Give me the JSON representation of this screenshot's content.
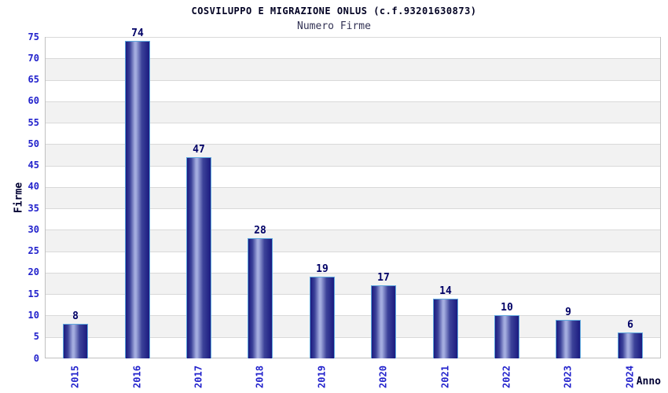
{
  "chart_data": {
    "type": "bar",
    "title": "COSVILUPPO E MIGRAZIONE ONLUS (c.f.93201630873)",
    "subtitle": "Numero Firme",
    "xlabel": "Anno",
    "ylabel": "Firme",
    "categories": [
      "2015",
      "2016",
      "2017",
      "2018",
      "2019",
      "2020",
      "2021",
      "2022",
      "2023",
      "2024"
    ],
    "values": [
      8,
      74,
      47,
      28,
      19,
      17,
      14,
      10,
      9,
      6
    ],
    "ylim": [
      0,
      75
    ],
    "ytick_step": 5,
    "grid": "horizontal",
    "legend": "none",
    "colors": {
      "title": "#000022",
      "subtitle": "#333355",
      "tick_label": "#2222cc",
      "value_label": "#000066",
      "axis_title": "#000033",
      "stripe": "#f2f2f2",
      "gridline": "#d9d9d9",
      "axis_line": "#c0c0c0",
      "bar_border": "#5fa8dd",
      "bar_dark": "#1b1b80",
      "bar_mid": "#3c4299",
      "bar_light": "#a3acdf"
    }
  }
}
